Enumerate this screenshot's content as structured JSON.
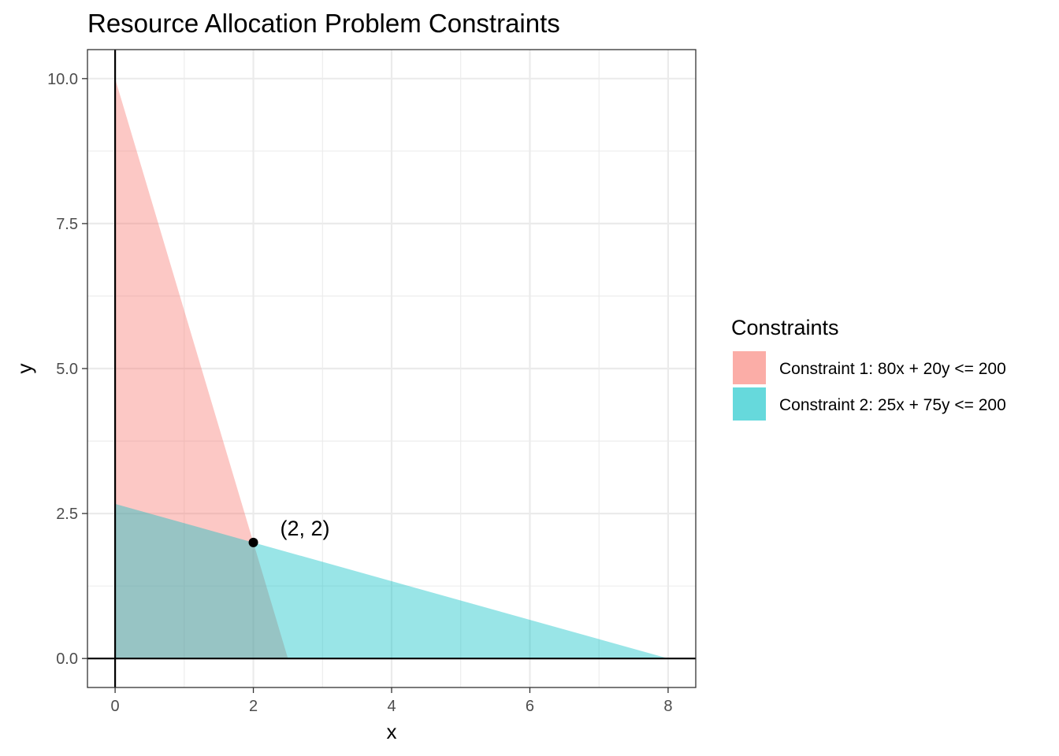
{
  "chart_data": {
    "type": "area",
    "title": "Resource Allocation Problem Constraints",
    "xlabel": "x",
    "ylabel": "y",
    "xlim": [
      -0.4,
      8.4
    ],
    "ylim": [
      -0.5,
      10.5
    ],
    "x_ticks": [
      0,
      2,
      4,
      6,
      8
    ],
    "x_tick_labels": [
      "0",
      "2",
      "4",
      "6",
      "8"
    ],
    "y_ticks": [
      0,
      2.5,
      5,
      7.5,
      10
    ],
    "y_tick_labels": [
      "0.0",
      "2.5",
      "5.0",
      "7.5",
      "10.0"
    ],
    "grid": true,
    "reference_lines": {
      "x": 0,
      "y": 0
    },
    "legend": {
      "title": "Constraints",
      "placement": "right"
    },
    "series": [
      {
        "name": "Constraint 1: 80x + 20y <= 200",
        "color": "#F8766D",
        "opacity": 0.4,
        "polygon": [
          [
            0,
            0
          ],
          [
            0,
            10
          ],
          [
            2.5,
            0
          ]
        ]
      },
      {
        "name": "Constraint 2: 25x + 75y <= 200",
        "color": "#00BFC4",
        "opacity": 0.4,
        "polygon": [
          [
            0,
            0
          ],
          [
            0,
            2.6667
          ],
          [
            8,
            0
          ]
        ]
      }
    ],
    "points": [
      {
        "x": 2,
        "y": 2,
        "label": "(2, 2)"
      }
    ]
  }
}
